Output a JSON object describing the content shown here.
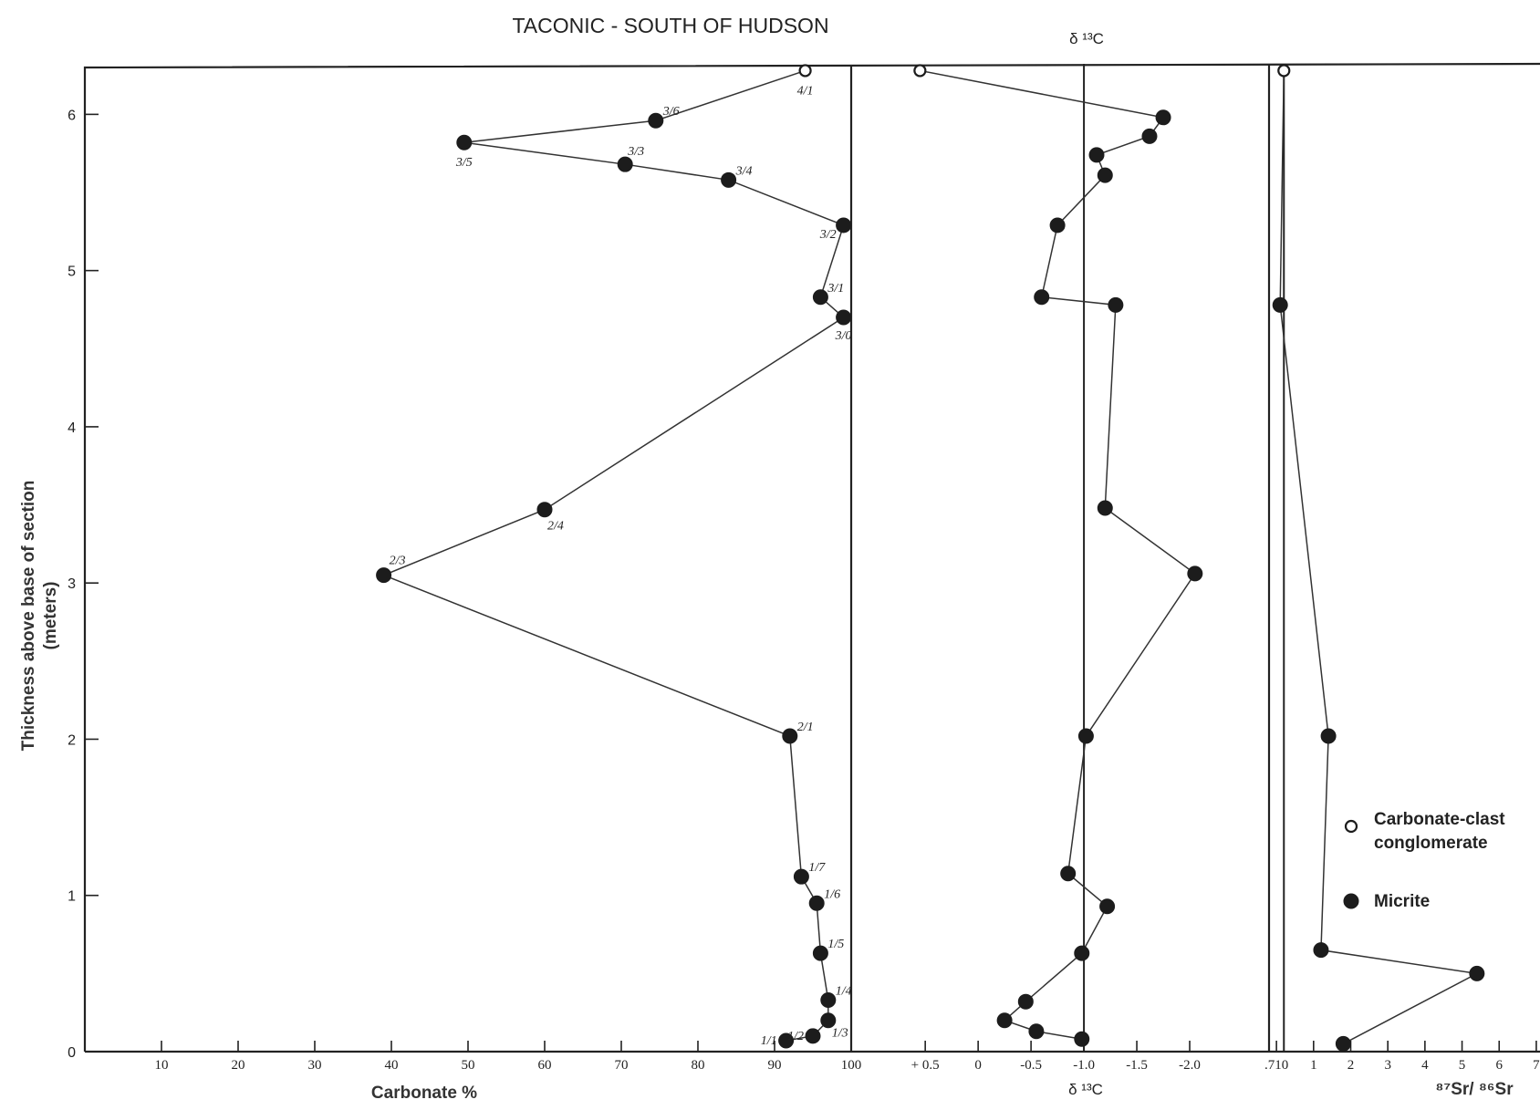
{
  "chart_data": {
    "type": "line",
    "title": "TACONIC - SOUTH OF  HUDSON",
    "ylabel": "Thickness above base of section",
    "ylabel_unit": "(meters)",
    "ylim": [
      0,
      6.3
    ],
    "y_ticks": [
      "0",
      "1",
      "2",
      "3",
      "4",
      "5",
      "6"
    ],
    "y_tick_values": [
      0,
      1,
      2,
      3,
      4,
      5,
      6
    ],
    "panels": [
      {
        "id": "carbonate",
        "xlabel": "Carbonate %",
        "xlim": [
          0,
          100
        ],
        "x_ticks": [
          "10",
          "20",
          "30",
          "40",
          "50",
          "60",
          "70",
          "80",
          "90",
          "100"
        ],
        "x_tick_values": [
          10,
          20,
          30,
          40,
          50,
          60,
          70,
          80,
          90,
          100
        ],
        "series": [
          {
            "name": "Carbonate-clast conglomerate",
            "marker": "open",
            "points": [
              {
                "x": 94,
                "y": 6.28,
                "label": "4/1"
              }
            ]
          },
          {
            "name": "Micrite",
            "marker": "filled",
            "points": [
              {
                "x": 74.5,
                "y": 5.96,
                "label": "3/6"
              },
              {
                "x": 49.5,
                "y": 5.82,
                "label": "3/5"
              },
              {
                "x": 70.5,
                "y": 5.68,
                "label": "3/3"
              },
              {
                "x": 84,
                "y": 5.58,
                "label": "3/4"
              },
              {
                "x": 99,
                "y": 5.29,
                "label": "3/2"
              },
              {
                "x": 96,
                "y": 4.83,
                "label": "3/1"
              },
              {
                "x": 99,
                "y": 4.7,
                "label": "3/0"
              },
              {
                "x": 60,
                "y": 3.47,
                "label": "2/4"
              },
              {
                "x": 39,
                "y": 3.05,
                "label": "2/3"
              },
              {
                "x": 92,
                "y": 2.02,
                "label": "2/1"
              },
              {
                "x": 93.5,
                "y": 1.12,
                "label": "1/7"
              },
              {
                "x": 95.5,
                "y": 0.95,
                "label": "1/6"
              },
              {
                "x": 96,
                "y": 0.63,
                "label": "1/5"
              },
              {
                "x": 97,
                "y": 0.33,
                "label": "1/4"
              },
              {
                "x": 97,
                "y": 0.2,
                "label": "1/3"
              },
              {
                "x": 95,
                "y": 0.1,
                "label": "1/2"
              },
              {
                "x": 91.5,
                "y": 0.07,
                "label": "1/1"
              }
            ]
          }
        ]
      },
      {
        "id": "d13c",
        "header": "δ ¹³C",
        "xlabel": "δ ¹³C",
        "xlim": [
          1.2,
          -2.75
        ],
        "x_ticks": [
          "+ 0.5",
          "0",
          "-0.5",
          "-1.0",
          "-1.5",
          "-2.0"
        ],
        "x_tick_values": [
          0.5,
          0,
          -0.5,
          -1.0,
          -1.5,
          -2.0
        ],
        "reference_line": -1.0,
        "series": [
          {
            "name": "Carbonate-clast conglomerate",
            "marker": "open",
            "points": [
              {
                "x": 0.55,
                "y": 6.28
              }
            ]
          },
          {
            "name": "Micrite",
            "marker": "filled",
            "points": [
              {
                "x": -1.75,
                "y": 5.98
              },
              {
                "x": -1.62,
                "y": 5.86
              },
              {
                "x": -1.12,
                "y": 5.74
              },
              {
                "x": -1.2,
                "y": 5.61
              },
              {
                "x": -0.75,
                "y": 5.29
              },
              {
                "x": -0.6,
                "y": 4.83
              },
              {
                "x": -1.3,
                "y": 4.78
              },
              {
                "x": -1.2,
                "y": 3.48
              },
              {
                "x": -2.05,
                "y": 3.06
              },
              {
                "x": -1.02,
                "y": 2.02
              },
              {
                "x": -0.85,
                "y": 1.14
              },
              {
                "x": -1.22,
                "y": 0.93
              },
              {
                "x": -0.98,
                "y": 0.63
              },
              {
                "x": -0.45,
                "y": 0.32
              },
              {
                "x": -0.25,
                "y": 0.2
              },
              {
                "x": -0.55,
                "y": 0.13
              },
              {
                "x": -0.98,
                "y": 0.08
              }
            ]
          }
        ]
      },
      {
        "id": "sr",
        "xlabel": "⁸⁷Sr/ ⁸⁶Sr",
        "xlim": [
          -0.2,
          7.1
        ],
        "x_ticks": [
          ".710",
          "1",
          "2",
          "3",
          "4",
          "5",
          "6",
          "7"
        ],
        "x_tick_values": [
          0,
          1,
          2,
          3,
          4,
          5,
          6,
          7
        ],
        "reference_line": 0.2,
        "series": [
          {
            "name": "Carbonate-clast conglomerate",
            "marker": "open",
            "points": [
              {
                "x": 0.2,
                "y": 6.28
              }
            ]
          },
          {
            "name": "Micrite",
            "marker": "filled",
            "points": [
              {
                "x": 0.1,
                "y": 4.78
              },
              {
                "x": 1.4,
                "y": 2.02
              },
              {
                "x": 1.2,
                "y": 0.65
              },
              {
                "x": 5.4,
                "y": 0.5
              },
              {
                "x": 1.8,
                "y": 0.05
              }
            ]
          }
        ]
      }
    ],
    "legend": {
      "position": "bottom-right",
      "items": [
        {
          "marker": "open",
          "label_lines": [
            "Carbonate-clast",
            "conglomerate"
          ]
        },
        {
          "marker": "filled",
          "label_lines": [
            "Micrite"
          ]
        }
      ]
    }
  }
}
